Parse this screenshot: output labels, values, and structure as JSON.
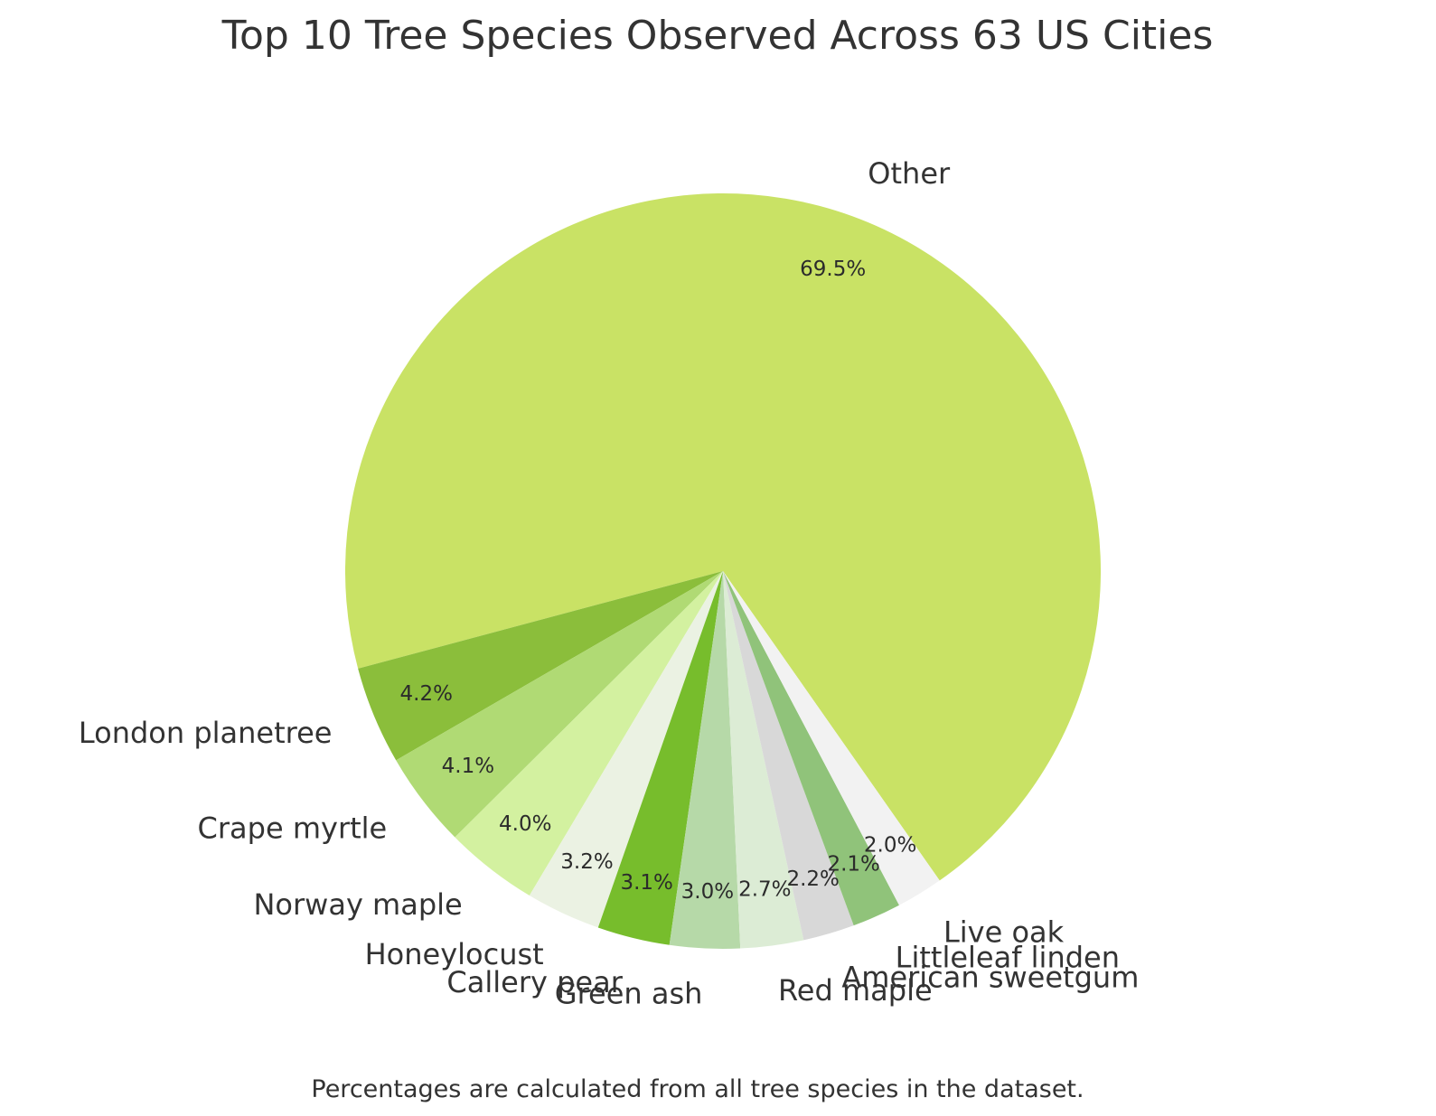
{
  "chart_data": {
    "type": "pie",
    "title": "Top 10 Tree Species Observed Across 63 US Cities",
    "footnote": "Percentages are calculated from all tree species in the dataset.",
    "slices": [
      {
        "label": "Other",
        "value": 69.5,
        "display": "69.5%",
        "color": "#c9e265"
      },
      {
        "label": "London planetree",
        "value": 4.2,
        "display": "4.2%",
        "color": "#8bbe3b"
      },
      {
        "label": "Crape myrtle",
        "value": 4.1,
        "display": "4.1%",
        "color": "#b0da74"
      },
      {
        "label": "Norway maple",
        "value": 4.0,
        "display": "4.0%",
        "color": "#d3f1a0"
      },
      {
        "label": "Honeylocust",
        "value": 3.2,
        "display": "3.2%",
        "color": "#ebf2e3"
      },
      {
        "label": "Callery pear",
        "value": 3.1,
        "display": "3.1%",
        "color": "#77bd2c"
      },
      {
        "label": "Green ash",
        "value": 3.0,
        "display": "3.0%",
        "color": "#b6d9a8"
      },
      {
        "label": "Red maple",
        "value": 2.7,
        "display": "2.7%",
        "color": "#dcecd5"
      },
      {
        "label": "American sweetgum",
        "value": 2.2,
        "display": "2.2%",
        "color": "#d8d8d8"
      },
      {
        "label": "Littleleaf linden",
        "value": 2.1,
        "display": "2.1%",
        "color": "#90c37a"
      },
      {
        "label": "Live oak",
        "value": 2.0,
        "display": "2.0%",
        "color": "#f2f2f2"
      }
    ],
    "start_angle_deg": -55,
    "direction": "counterclockwise",
    "legend": "none"
  }
}
